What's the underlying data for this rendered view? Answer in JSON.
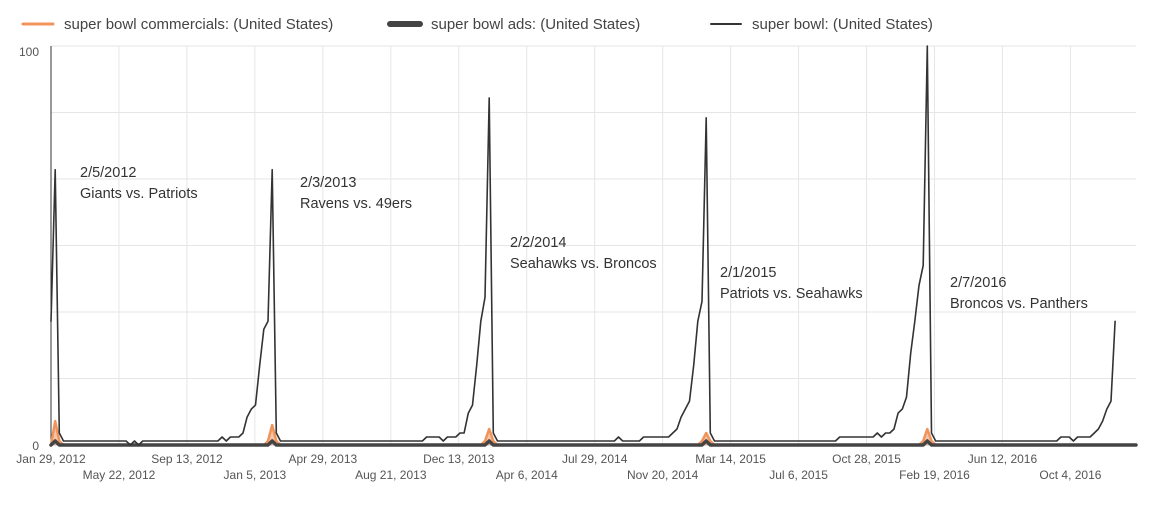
{
  "chart_data": {
    "type": "line",
    "title": "",
    "xlabel": "",
    "ylabel": "",
    "ylim": [
      0,
      100
    ],
    "y_ticks": [
      "0",
      "100"
    ],
    "x_range": [
      "2012-01-29",
      "2017-01-22"
    ],
    "grid": true,
    "legend_position": "top-left",
    "x_ticks": [
      {
        "date": "2012-01-29",
        "label": "Jan 29, 2012"
      },
      {
        "date": "2012-05-22",
        "label": "May 22, 2012"
      },
      {
        "date": "2012-09-13",
        "label": "Sep 13, 2012"
      },
      {
        "date": "2013-01-05",
        "label": "Jan 5, 2013"
      },
      {
        "date": "2013-04-29",
        "label": "Apr 29, 2013"
      },
      {
        "date": "2013-08-21",
        "label": "Aug 21, 2013"
      },
      {
        "date": "2013-12-13",
        "label": "Dec 13, 2013"
      },
      {
        "date": "2014-04-06",
        "label": "Apr 6, 2014"
      },
      {
        "date": "2014-07-29",
        "label": "Jul 29, 2014"
      },
      {
        "date": "2014-11-20",
        "label": "Nov 20, 2014"
      },
      {
        "date": "2015-03-14",
        "label": "Mar 14, 2015"
      },
      {
        "date": "2015-07-06",
        "label": "Jul 6, 2015"
      },
      {
        "date": "2015-10-28",
        "label": "Oct 28, 2015"
      },
      {
        "date": "2016-02-19",
        "label": "Feb 19, 2016"
      },
      {
        "date": "2016-06-12",
        "label": "Jun 12, 2016"
      },
      {
        "date": "2016-10-04",
        "label": "Oct 4, 2016"
      }
    ],
    "series": [
      {
        "name": "super bowl commercials: (United States)",
        "color": "#f0945c",
        "points": [
          [
            "2012-01-29",
            0
          ],
          [
            "2012-02-05",
            6
          ],
          [
            "2012-02-12",
            1
          ],
          [
            "2012-02-19",
            0
          ],
          [
            "2013-01-20",
            0
          ],
          [
            "2013-01-27",
            1
          ],
          [
            "2013-02-03",
            5
          ],
          [
            "2013-02-10",
            1
          ],
          [
            "2013-02-17",
            0
          ],
          [
            "2014-01-19",
            0
          ],
          [
            "2014-01-26",
            1
          ],
          [
            "2014-02-02",
            4
          ],
          [
            "2014-02-09",
            1
          ],
          [
            "2014-02-16",
            0
          ],
          [
            "2015-01-18",
            0
          ],
          [
            "2015-01-25",
            1
          ],
          [
            "2015-02-01",
            3
          ],
          [
            "2015-02-08",
            1
          ],
          [
            "2015-02-15",
            0
          ],
          [
            "2016-01-24",
            0
          ],
          [
            "2016-01-31",
            1
          ],
          [
            "2016-02-07",
            4
          ],
          [
            "2016-02-14",
            1
          ],
          [
            "2016-02-21",
            0
          ],
          [
            "2017-01-22",
            0
          ]
        ]
      },
      {
        "name": "super bowl ads: (United States)",
        "color": "#444444",
        "points": [
          [
            "2012-01-29",
            0
          ],
          [
            "2012-02-05",
            1
          ],
          [
            "2012-02-12",
            0
          ],
          [
            "2013-01-27",
            0
          ],
          [
            "2013-02-03",
            1
          ],
          [
            "2013-02-10",
            0
          ],
          [
            "2014-01-26",
            0
          ],
          [
            "2014-02-02",
            1
          ],
          [
            "2014-02-09",
            0
          ],
          [
            "2015-01-25",
            0
          ],
          [
            "2015-02-01",
            1
          ],
          [
            "2015-02-08",
            0
          ],
          [
            "2016-01-31",
            0
          ],
          [
            "2016-02-07",
            1
          ],
          [
            "2016-02-14",
            0
          ],
          [
            "2017-01-22",
            0
          ]
        ]
      },
      {
        "name": "super bowl: (United States)",
        "color": "#333333",
        "points": [
          [
            "2012-01-29",
            31
          ],
          [
            "2012-02-05",
            69
          ],
          [
            "2012-02-12",
            3
          ],
          [
            "2012-02-19",
            1
          ],
          [
            "2012-02-26",
            1
          ],
          [
            "2012-06-03",
            1
          ],
          [
            "2012-06-10",
            0
          ],
          [
            "2012-06-17",
            1
          ],
          [
            "2012-06-24",
            0
          ],
          [
            "2012-07-01",
            1
          ],
          [
            "2012-11-04",
            1
          ],
          [
            "2012-11-11",
            2
          ],
          [
            "2012-11-18",
            1
          ],
          [
            "2012-11-25",
            2
          ],
          [
            "2012-12-09",
            2
          ],
          [
            "2012-12-16",
            3
          ],
          [
            "2012-12-23",
            7
          ],
          [
            "2012-12-30",
            9
          ],
          [
            "2013-01-06",
            10
          ],
          [
            "2013-01-13",
            20
          ],
          [
            "2013-01-20",
            29
          ],
          [
            "2013-01-27",
            31
          ],
          [
            "2013-02-03",
            69
          ],
          [
            "2013-02-10",
            3
          ],
          [
            "2013-02-17",
            1
          ],
          [
            "2013-10-13",
            1
          ],
          [
            "2013-10-20",
            2
          ],
          [
            "2013-11-10",
            2
          ],
          [
            "2013-11-17",
            1
          ],
          [
            "2013-11-24",
            2
          ],
          [
            "2013-12-08",
            2
          ],
          [
            "2013-12-15",
            3
          ],
          [
            "2013-12-22",
            3
          ],
          [
            "2013-12-29",
            8
          ],
          [
            "2014-01-05",
            10
          ],
          [
            "2014-01-12",
            20
          ],
          [
            "2014-01-19",
            31
          ],
          [
            "2014-01-26",
            37
          ],
          [
            "2014-02-02",
            87
          ],
          [
            "2014-02-09",
            3
          ],
          [
            "2014-02-16",
            1
          ],
          [
            "2014-08-31",
            1
          ],
          [
            "2014-09-07",
            2
          ],
          [
            "2014-09-14",
            1
          ],
          [
            "2014-10-12",
            1
          ],
          [
            "2014-10-19",
            2
          ],
          [
            "2014-11-30",
            2
          ],
          [
            "2014-12-07",
            3
          ],
          [
            "2014-12-14",
            4
          ],
          [
            "2014-12-21",
            7
          ],
          [
            "2014-12-28",
            9
          ],
          [
            "2015-01-04",
            11
          ],
          [
            "2015-01-11",
            20
          ],
          [
            "2015-01-18",
            31
          ],
          [
            "2015-01-25",
            36
          ],
          [
            "2015-02-01",
            82
          ],
          [
            "2015-02-08",
            3
          ],
          [
            "2015-02-15",
            1
          ],
          [
            "2015-09-06",
            1
          ],
          [
            "2015-09-13",
            2
          ],
          [
            "2015-11-08",
            2
          ],
          [
            "2015-11-15",
            3
          ],
          [
            "2015-11-22",
            2
          ],
          [
            "2015-11-29",
            3
          ],
          [
            "2015-12-06",
            3
          ],
          [
            "2015-12-13",
            4
          ],
          [
            "2015-12-20",
            8
          ],
          [
            "2015-12-27",
            9
          ],
          [
            "2016-01-03",
            12
          ],
          [
            "2016-01-10",
            23
          ],
          [
            "2016-01-17",
            31
          ],
          [
            "2016-01-24",
            40
          ],
          [
            "2016-01-31",
            45
          ],
          [
            "2016-02-07",
            100
          ],
          [
            "2016-02-14",
            3
          ],
          [
            "2016-02-21",
            1
          ],
          [
            "2016-09-11",
            1
          ],
          [
            "2016-09-18",
            2
          ],
          [
            "2016-10-02",
            2
          ],
          [
            "2016-10-09",
            1
          ],
          [
            "2016-10-16",
            2
          ],
          [
            "2016-11-06",
            2
          ],
          [
            "2016-11-13",
            3
          ],
          [
            "2016-11-20",
            4
          ],
          [
            "2016-11-27",
            6
          ],
          [
            "2016-12-04",
            9
          ],
          [
            "2016-12-11",
            11
          ],
          [
            "2016-12-18",
            31
          ]
        ]
      }
    ],
    "annotations": [
      {
        "date_label": "2/5/2012",
        "matchup": "Giants vs. Patriots"
      },
      {
        "date_label": "2/3/2013",
        "matchup": "Ravens vs. 49ers"
      },
      {
        "date_label": "2/2/2014",
        "matchup": "Seahawks vs. Broncos"
      },
      {
        "date_label": "2/1/2015",
        "matchup": "Patriots vs. Seahawks"
      },
      {
        "date_label": "2/7/2016",
        "matchup": "Broncos vs. Panthers"
      }
    ]
  }
}
